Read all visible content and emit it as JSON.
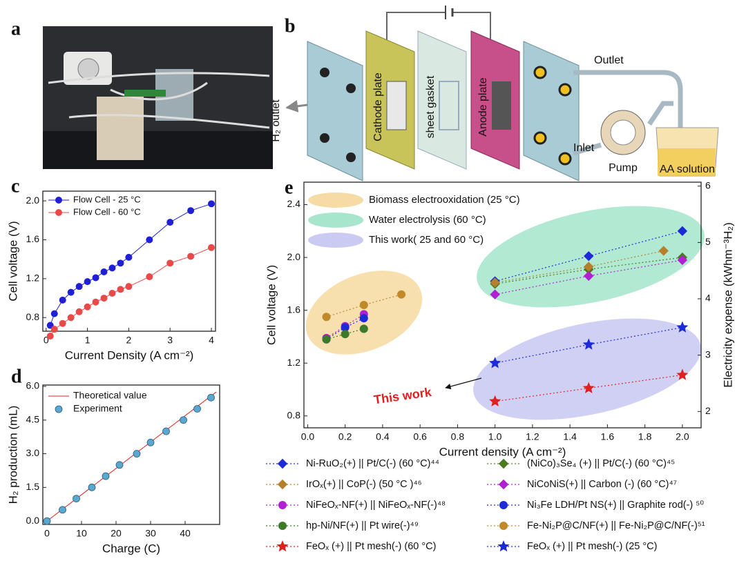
{
  "panel_labels": [
    "a",
    "b",
    "c",
    "d",
    "e"
  ],
  "diagram": {
    "labels": [
      "H₂ outlet",
      "Cathode plate",
      "sheet gasket",
      "Anode plate",
      "Outlet",
      "Inlet",
      "Pump",
      "AA solution"
    ]
  },
  "chart_data": [
    {
      "type": "line",
      "marker": "circle",
      "x": [
        0.1,
        0.2,
        0.4,
        0.6,
        0.8,
        1.0,
        1.2,
        1.4,
        1.6,
        1.8,
        2.0,
        2.5,
        3.0,
        3.5,
        4.0
      ],
      "series": [
        {
          "name": "Flow Cell - 25 °C",
          "color": "#1f1fd6",
          "values": [
            0.72,
            0.84,
            0.98,
            1.06,
            1.12,
            1.17,
            1.21,
            1.27,
            1.31,
            1.36,
            1.42,
            1.6,
            1.78,
            1.9,
            1.97
          ]
        },
        {
          "name": "Flow Cell - 60 °C",
          "color": "#e84a4a",
          "values": [
            0.61,
            0.68,
            0.74,
            0.8,
            0.86,
            0.91,
            0.96,
            1.0,
            1.05,
            1.09,
            1.12,
            1.22,
            1.36,
            1.43,
            1.52
          ]
        }
      ],
      "xlabel": "Current Density (A cm⁻²)",
      "ylabel": "Cell voltage (V)",
      "xlim": [
        -0.08,
        4.1
      ],
      "xticks": [
        0,
        1,
        2,
        3,
        4
      ],
      "ylim": [
        0.66,
        2.1
      ],
      "yticks": [
        0.8,
        1.2,
        1.6,
        {
          "value": 2,
          "label": "2.0"
        }
      ]
    },
    {
      "type": "line",
      "series": [
        {
          "name": "Theoretical value",
          "type": "line",
          "color": "#e02020",
          "x": [
            0,
            49
          ],
          "values": [
            0,
            5.75
          ]
        },
        {
          "name": "Experiment",
          "type": "scatter",
          "marker": "circle",
          "color": "#5aa8d0",
          "x": [
            0,
            4.5,
            8.5,
            13,
            17,
            21,
            26,
            30,
            34.5,
            39.5,
            43.5,
            47.5
          ],
          "values": [
            0,
            0.5,
            1.0,
            1.5,
            2.0,
            2.5,
            3.0,
            3.5,
            4.0,
            4.5,
            5.0,
            5.5
          ]
        }
      ],
      "xlabel": "Charge (C)",
      "ylabel": "H₂ production (mL)",
      "xlim": [
        -1.2,
        50
      ],
      "xticks": [
        0,
        10,
        20,
        30,
        40
      ],
      "ylim": [
        -0.15,
        6.06
      ],
      "yticks": [
        {
          "value": 0,
          "label": "0.0"
        },
        1.5,
        {
          "value": 3,
          "label": "3.0"
        },
        4.5,
        {
          "value": 6,
          "label": "6.0"
        }
      ]
    },
    {
      "type": "scatter",
      "line_style": "dotted",
      "series": [
        {
          "name": "Ni-RuO₂(+) || Pt/C(-) (60 °C)⁴⁴",
          "marker": "diamond",
          "color": "#1d2bd6",
          "x": [
            1,
            1.5,
            2
          ],
          "values": [
            1.82,
            2.01,
            2.2
          ]
        },
        {
          "name": "(NiCo)₃Se₄ (+) || Pt/C(-)  (60 °C)⁴⁵",
          "marker": "diamond",
          "color": "#4a7a20",
          "x": [
            1,
            1.5,
            2
          ],
          "values": [
            1.8,
            1.91,
            2.0
          ]
        },
        {
          "name": "IrOₓ(+) || CoP(-) (50 °C )⁴⁶",
          "marker": "diamond",
          "color": "#b5802a",
          "x": [
            1,
            1.5,
            1.9
          ],
          "values": [
            1.81,
            1.93,
            2.05
          ]
        },
        {
          "name": "NiCoNiS(+) || Carbon (-) (60 °C)⁴⁷",
          "marker": "diamond",
          "color": "#b020d0",
          "x": [
            1,
            1.5,
            2
          ],
          "values": [
            1.72,
            1.86,
            1.98
          ]
        },
        {
          "name": "NiFeOₓ-NF(+) || NiFeOₓ-NF(-)⁴⁸",
          "marker": "circle",
          "color": "#b020d0",
          "x": [
            0.1,
            0.2,
            0.3
          ],
          "values": [
            1.39,
            1.48,
            1.57
          ]
        },
        {
          "name": "Ni₃Fe LDH/Pt NS(+) || Graphite rod(-) ⁵⁰",
          "marker": "circle",
          "color": "#1d2bd6",
          "x": [
            0.1,
            0.2,
            0.3
          ],
          "values": [
            1.38,
            1.47,
            1.54
          ]
        },
        {
          "name": "hp-Ni/NF(+) || Pt wire(-)⁴⁹",
          "marker": "circle",
          "color": "#3c7a2a",
          "x": [
            0.1,
            0.2,
            0.3
          ],
          "values": [
            1.38,
            1.42,
            1.46
          ]
        },
        {
          "name": "Fe-Ni₂P@C/NF(+) || Fe-Ni₂P@C/NF(-)⁵¹",
          "marker": "circle",
          "color": "#c08a2a",
          "x": [
            0.1,
            0.3,
            0.5
          ],
          "values": [
            1.55,
            1.64,
            1.72
          ]
        },
        {
          "name": "FeOₓ (+) || Pt mesh(-) (60 °C)",
          "marker": "star",
          "color": "#e02020",
          "x": [
            1,
            1.5,
            2
          ],
          "values": [
            0.91,
            1.01,
            1.11
          ]
        },
        {
          "name": "FeOₓ (+) || Pt mesh(-) (25 °C)",
          "marker": "star",
          "color": "#1d2bd6",
          "x": [
            1,
            1.5,
            2
          ],
          "values": [
            1.2,
            1.34,
            1.47
          ]
        }
      ],
      "regions": [
        {
          "name": "Biomass electrooxidation (25 °C)",
          "color": "#f5d79a"
        },
        {
          "name": "Water electrolysis (60 °C)",
          "color": "#9de3c8"
        },
        {
          "name": "This work( 25 and 60 °C)",
          "color": "#c4c4f2"
        }
      ],
      "annotation": "This work",
      "annotation_color": "#e02020",
      "xlabel": "Current density (A cm⁻²)",
      "ylabel": "Cell voltage (V)",
      "y2label": "Electricity expense (kWhm⁻³H₂)",
      "xlim": [
        -0.02,
        2.1
      ],
      "xticks": [
        {
          "value": 0,
          "label": "0.0"
        },
        0.2,
        0.4,
        0.6,
        0.8,
        {
          "value": 1,
          "label": "1.0"
        },
        1.2,
        1.4,
        1.6,
        1.8,
        {
          "value": 2,
          "label": "2.0"
        }
      ],
      "ylim": [
        0.71,
        2.57
      ],
      "yticks": [
        0.8,
        1.2,
        1.6,
        {
          "value": 2,
          "label": "2.0"
        },
        2.4
      ],
      "y2lim": [
        1.71,
        6.07
      ],
      "y2ticks": [
        2,
        3,
        4,
        5,
        6
      ]
    }
  ]
}
